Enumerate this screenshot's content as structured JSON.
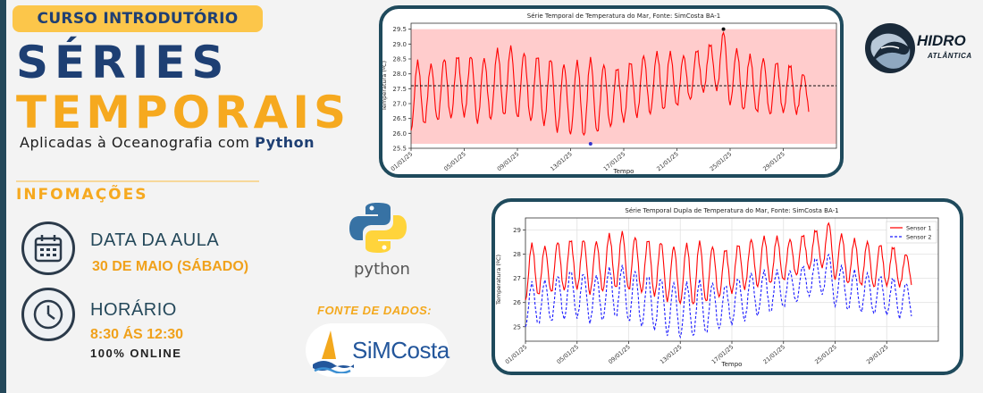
{
  "header": {
    "badge": "CURSO INTRODUTÓRIO",
    "title_line1": "SÉRIES",
    "title_line2": "TEMPORAIS",
    "subtitle_prefix": "Aplicadas à Oceanografia com ",
    "subtitle_bold": "Python"
  },
  "info": {
    "heading": "INFOMAÇÕES",
    "date_label": "DATA DA AULA",
    "date_value": "30 DE MAIO (SÁBADO)",
    "time_label": "HORÁRIO",
    "time_value": "8:30 ÁS 12:30",
    "mode": "100% ONLINE"
  },
  "python_logo": {
    "wordmark": "python",
    "colors": {
      "blue": "#3772a4",
      "yellow": "#ffd43b"
    }
  },
  "data_source": {
    "label": "FONTE DE DADOS:",
    "name": "SiMCosta"
  },
  "brand": {
    "name": "HIDRO",
    "sub": "ATLÂNTICA"
  },
  "colors": {
    "navy": "#1e3f73",
    "orange": "#f6a91f",
    "frame": "#1f4a5c"
  },
  "chart_data": [
    {
      "type": "line",
      "title": "Série Temporal de Temperatura do Mar, Fonte: SimCosta BA-1",
      "xlabel": "Tempo",
      "ylabel": "Temperatura (ºC)",
      "x_ticks": [
        "01/01/25",
        "05/01/25",
        "09/01/25",
        "13/01/25",
        "17/01/25",
        "21/01/25",
        "25/01/25",
        "29/01/25"
      ],
      "y_ticks": [
        "25.5",
        "26.0",
        "26.5",
        "27.0",
        "27.5",
        "28.0",
        "28.5",
        "29.0",
        "29.5"
      ],
      "ylim": [
        25.5,
        29.7
      ],
      "xlim_days": [
        0,
        32
      ],
      "series": [
        {
          "color": "#ff0000",
          "daily_min": [
            26.1,
            26.3,
            26.4,
            26.5,
            26.6,
            26.4,
            26.5,
            26.6,
            26.5,
            26.4,
            26.3,
            26.1,
            26.0,
            25.9,
            26.0,
            26.2,
            26.4,
            26.6,
            26.7,
            26.8,
            26.9,
            27.1,
            27.4,
            27.5,
            27.0,
            26.8,
            26.7,
            26.6,
            26.7,
            26.7
          ],
          "daily_max": [
            28.4,
            28.3,
            28.5,
            28.6,
            28.6,
            28.5,
            28.8,
            28.9,
            28.7,
            28.6,
            28.5,
            28.3,
            28.4,
            28.5,
            28.3,
            28.2,
            28.4,
            28.6,
            28.7,
            28.7,
            28.6,
            28.8,
            29.0,
            29.4,
            28.8,
            28.6,
            28.5,
            28.4,
            28.3,
            28.0
          ]
        }
      ],
      "mean_line": 27.6,
      "max_point": {
        "day": 23.5,
        "value": 29.5
      },
      "min_point": {
        "day": 13.5,
        "value": 25.65
      },
      "band": [
        25.65,
        29.5
      ]
    },
    {
      "type": "line",
      "title": "Série Temporal Dupla de Temperatura do Mar, Fonte: SimCosta BA-1",
      "xlabel": "Tempo",
      "ylabel": "Temperatura (ºC)",
      "x_ticks": [
        "01/01/25",
        "05/01/25",
        "09/01/25",
        "13/01/25",
        "17/01/25",
        "21/01/25",
        "25/01/25",
        "29/01/25"
      ],
      "y_ticks": [
        "25",
        "26",
        "27",
        "28",
        "29"
      ],
      "ylim": [
        24.4,
        29.5
      ],
      "xlim_days": [
        0,
        32
      ],
      "legend": "top-right",
      "grid": true,
      "series": [
        {
          "name": "Sensor 1",
          "color": "#ff0000",
          "dash": false,
          "daily_min": [
            26.1,
            26.3,
            26.4,
            26.5,
            26.6,
            26.4,
            26.5,
            26.6,
            26.5,
            26.4,
            26.3,
            26.1,
            26.0,
            25.9,
            26.0,
            26.2,
            26.4,
            26.6,
            26.7,
            26.8,
            26.9,
            27.1,
            27.4,
            27.5,
            27.0,
            26.8,
            26.7,
            26.6,
            26.7,
            26.7
          ],
          "daily_max": [
            28.4,
            28.3,
            28.5,
            28.6,
            28.6,
            28.5,
            28.8,
            28.9,
            28.7,
            28.6,
            28.5,
            28.3,
            28.4,
            28.5,
            28.3,
            28.2,
            28.4,
            28.6,
            28.7,
            28.7,
            28.6,
            28.8,
            29.0,
            29.3,
            28.8,
            28.6,
            28.5,
            28.4,
            28.3,
            28.0
          ]
        },
        {
          "name": "Sensor 2",
          "color": "#1a1aff",
          "dash": true,
          "daily_min": [
            25.0,
            25.1,
            25.2,
            25.3,
            25.4,
            25.2,
            25.3,
            25.4,
            25.2,
            25.0,
            24.9,
            24.7,
            24.6,
            24.6,
            24.7,
            24.9,
            25.1,
            25.3,
            25.5,
            25.6,
            25.8,
            26.0,
            26.3,
            26.4,
            25.9,
            25.7,
            25.6,
            25.5,
            25.5,
            25.4
          ],
          "daily_max": [
            26.8,
            26.9,
            27.1,
            27.3,
            27.2,
            27.1,
            27.4,
            27.5,
            27.3,
            27.1,
            27.0,
            26.8,
            26.8,
            26.9,
            26.8,
            26.7,
            27.0,
            27.2,
            27.3,
            27.3,
            27.3,
            27.5,
            27.8,
            28.0,
            27.5,
            27.3,
            27.2,
            27.1,
            27.0,
            26.8
          ]
        }
      ]
    }
  ]
}
